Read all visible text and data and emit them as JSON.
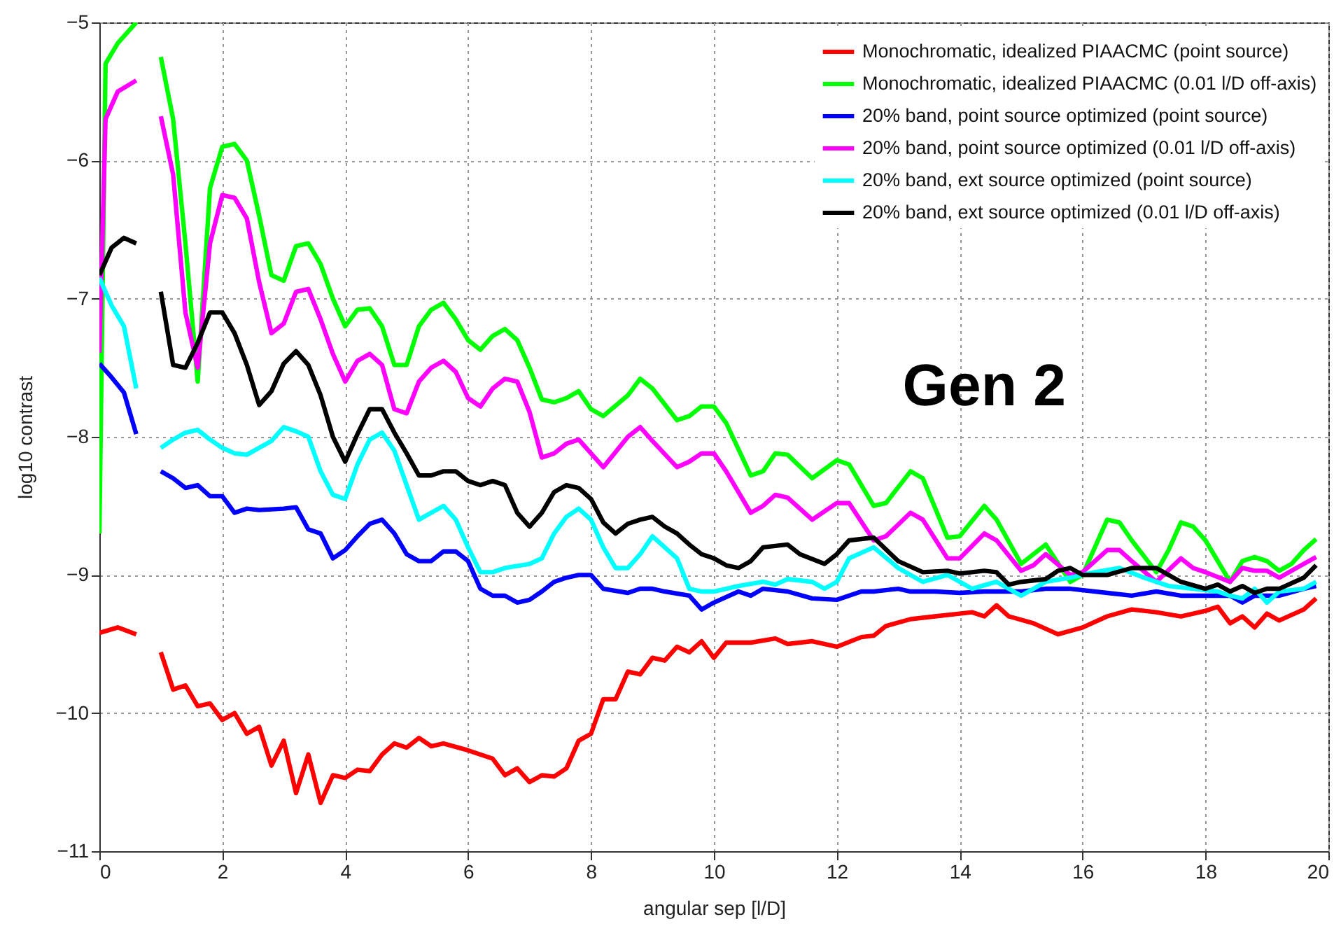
{
  "chart_data": {
    "type": "line",
    "xlabel": "angular sep [l/D]",
    "ylabel": "log10 contrast",
    "xlim": [
      0,
      20
    ],
    "xticks": [
      0,
      2,
      4,
      6,
      8,
      10,
      12,
      14,
      16,
      18,
      20
    ],
    "ylim": [
      -11,
      -5
    ],
    "yticks": [
      -11,
      -10,
      -9,
      -8,
      -7,
      -6,
      -5
    ],
    "grid": true,
    "legend": "top right",
    "line_style": "solid",
    "annotations": [
      "Gen 2"
    ],
    "series": [
      {
        "name": "Monochromatic, idealized PIAACMC (point source)",
        "color": "#ff0000",
        "x": [
          0,
          0.3,
          0.6,
          0.8,
          1.0,
          1.2,
          1.4,
          1.6,
          1.8,
          2.0,
          2.2,
          2.4,
          2.6,
          2.8,
          3.0,
          3.2,
          3.4,
          3.6,
          3.8,
          4.0,
          4.2,
          4.4,
          4.6,
          4.8,
          5.0,
          5.2,
          5.4,
          5.6,
          6.0,
          6.4,
          6.6,
          6.8,
          7.0,
          7.2,
          7.4,
          7.6,
          7.8,
          8.0,
          8.2,
          8.4,
          8.6,
          8.8,
          9.0,
          9.2,
          9.4,
          9.6,
          9.8,
          10.0,
          10.2,
          10.6,
          11.0,
          11.2,
          11.6,
          12.0,
          12.4,
          12.6,
          12.8,
          13.2,
          13.6,
          14.0,
          14.2,
          14.4,
          14.6,
          14.8,
          15.2,
          15.6,
          16.0,
          16.4,
          16.8,
          17.2,
          17.6,
          18.0,
          18.2,
          18.4,
          18.6,
          18.8,
          19.0,
          19.2,
          19.6,
          19.8
        ],
        "values": [
          -9.42,
          -9.38,
          -9.43,
          null,
          -9.56,
          -9.83,
          -9.8,
          -9.95,
          -9.93,
          -10.05,
          -10.0,
          -10.15,
          -10.1,
          -10.38,
          -10.2,
          -10.58,
          -10.3,
          -10.65,
          -10.45,
          -10.47,
          -10.41,
          -10.42,
          -10.3,
          -10.22,
          -10.25,
          -10.18,
          -10.24,
          -10.22,
          -10.27,
          -10.33,
          -10.45,
          -10.4,
          -10.5,
          -10.45,
          -10.46,
          -10.4,
          -10.2,
          -10.15,
          -9.9,
          -9.9,
          -9.7,
          -9.72,
          -9.6,
          -9.62,
          -9.52,
          -9.56,
          -9.48,
          -9.6,
          -9.49,
          -9.49,
          -9.46,
          -9.5,
          -9.48,
          -9.52,
          -9.45,
          -9.44,
          -9.37,
          -9.32,
          -9.3,
          -9.28,
          -9.27,
          -9.3,
          -9.22,
          -9.3,
          -9.35,
          -9.43,
          -9.38,
          -9.3,
          -9.25,
          -9.27,
          -9.3,
          -9.26,
          -9.23,
          -9.35,
          -9.3,
          -9.38,
          -9.28,
          -9.33,
          -9.25,
          -9.17
        ]
      },
      {
        "name": "Monochromatic, idealized PIAACMC (0.01 l/D off-axis)",
        "color": "#00ff00",
        "x": [
          0,
          0.1,
          0.3,
          0.6,
          0.8,
          1.0,
          1.2,
          1.4,
          1.6,
          1.8,
          2.0,
          2.2,
          2.4,
          2.6,
          2.8,
          3.0,
          3.2,
          3.4,
          3.6,
          3.8,
          4.0,
          4.2,
          4.4,
          4.6,
          4.8,
          5.0,
          5.2,
          5.4,
          5.6,
          5.8,
          6.0,
          6.2,
          6.4,
          6.6,
          6.8,
          7.0,
          7.2,
          7.4,
          7.6,
          7.8,
          8.0,
          8.2,
          8.6,
          8.8,
          9.0,
          9.4,
          9.6,
          9.8,
          10.0,
          10.2,
          10.6,
          10.8,
          11.0,
          11.2,
          11.6,
          12.0,
          12.2,
          12.6,
          12.8,
          13.2,
          13.4,
          13.8,
          14.0,
          14.4,
          14.6,
          15.0,
          15.2,
          15.4,
          15.8,
          16.0,
          16.4,
          16.6,
          16.8,
          17.2,
          17.4,
          17.6,
          17.8,
          18.0,
          18.4,
          18.6,
          18.8,
          19.0,
          19.2,
          19.4,
          19.6,
          19.8
        ],
        "values": [
          -8.7,
          -5.3,
          -5.15,
          -5.0,
          null,
          -5.25,
          -5.7,
          -6.6,
          -7.6,
          -6.2,
          -5.9,
          -5.88,
          -6.0,
          -6.4,
          -6.83,
          -6.87,
          -6.62,
          -6.6,
          -6.75,
          -7.0,
          -7.2,
          -7.08,
          -7.07,
          -7.2,
          -7.48,
          -7.48,
          -7.2,
          -7.08,
          -7.03,
          -7.15,
          -7.3,
          -7.37,
          -7.27,
          -7.22,
          -7.3,
          -7.5,
          -7.73,
          -7.75,
          -7.72,
          -7.67,
          -7.8,
          -7.85,
          -7.7,
          -7.58,
          -7.65,
          -7.88,
          -7.85,
          -7.78,
          -7.78,
          -7.9,
          -8.28,
          -8.25,
          -8.12,
          -8.13,
          -8.3,
          -8.17,
          -8.2,
          -8.5,
          -8.48,
          -8.25,
          -8.3,
          -8.73,
          -8.72,
          -8.5,
          -8.6,
          -8.92,
          -8.85,
          -8.78,
          -9.05,
          -9.0,
          -8.6,
          -8.62,
          -8.75,
          -8.98,
          -8.82,
          -8.62,
          -8.65,
          -8.75,
          -9.05,
          -8.9,
          -8.87,
          -8.9,
          -8.97,
          -8.92,
          -8.82,
          -8.74
        ]
      },
      {
        "name": "20% band, point source optimized (point source)",
        "color": "#0000ff",
        "x": [
          0,
          0.2,
          0.4,
          0.6,
          0.8,
          1.0,
          1.2,
          1.4,
          1.6,
          1.8,
          2.0,
          2.2,
          2.4,
          2.6,
          3.0,
          3.2,
          3.4,
          3.6,
          3.8,
          4.0,
          4.2,
          4.4,
          4.6,
          4.8,
          5.0,
          5.2,
          5.4,
          5.6,
          5.8,
          6.0,
          6.2,
          6.4,
          6.6,
          6.8,
          7.0,
          7.2,
          7.4,
          7.6,
          7.8,
          8.0,
          8.2,
          8.6,
          8.8,
          9.0,
          9.2,
          9.6,
          9.8,
          10.0,
          10.4,
          10.6,
          10.8,
          11.2,
          11.6,
          12.0,
          12.4,
          12.6,
          13.0,
          13.2,
          13.6,
          14.0,
          14.4,
          14.8,
          15.0,
          15.4,
          15.8,
          16.4,
          16.8,
          17.2,
          17.6,
          18.0,
          18.4,
          18.6,
          18.8,
          19.2,
          19.6,
          19.8
        ],
        "values": [
          -7.47,
          -7.57,
          -7.68,
          -7.98,
          null,
          -8.25,
          -8.3,
          -8.37,
          -8.35,
          -8.43,
          -8.43,
          -8.55,
          -8.52,
          -8.53,
          -8.52,
          -8.51,
          -8.67,
          -8.7,
          -8.88,
          -8.82,
          -8.72,
          -8.63,
          -8.6,
          -8.7,
          -8.85,
          -8.9,
          -8.9,
          -8.83,
          -8.83,
          -8.9,
          -9.1,
          -9.15,
          -9.15,
          -9.2,
          -9.18,
          -9.12,
          -9.05,
          -9.02,
          -9.0,
          -9.0,
          -9.1,
          -9.13,
          -9.1,
          -9.1,
          -9.12,
          -9.15,
          -9.25,
          -9.2,
          -9.12,
          -9.15,
          -9.1,
          -9.12,
          -9.17,
          -9.18,
          -9.12,
          -9.12,
          -9.1,
          -9.12,
          -9.12,
          -9.13,
          -9.12,
          -9.12,
          -9.12,
          -9.1,
          -9.1,
          -9.13,
          -9.15,
          -9.12,
          -9.15,
          -9.15,
          -9.15,
          -9.2,
          -9.15,
          -9.15,
          -9.1,
          -9.08
        ]
      },
      {
        "name": "20% band, point source optimized (0.01 l/D off-axis)",
        "color": "#ff00ff",
        "x": [
          0,
          0.1,
          0.3,
          0.6,
          0.8,
          1.0,
          1.2,
          1.4,
          1.6,
          1.8,
          2.0,
          2.2,
          2.4,
          2.6,
          2.8,
          3.0,
          3.2,
          3.4,
          3.6,
          3.8,
          4.0,
          4.2,
          4.4,
          4.6,
          4.8,
          5.0,
          5.2,
          5.4,
          5.6,
          5.8,
          6.0,
          6.2,
          6.4,
          6.6,
          6.8,
          7.0,
          7.2,
          7.4,
          7.6,
          7.8,
          8.0,
          8.2,
          8.6,
          8.8,
          9.0,
          9.4,
          9.6,
          9.8,
          10.0,
          10.2,
          10.6,
          10.8,
          11.0,
          11.2,
          11.6,
          12.0,
          12.2,
          12.6,
          12.8,
          13.2,
          13.4,
          13.8,
          14.0,
          14.4,
          14.6,
          15.0,
          15.2,
          15.4,
          15.8,
          16.0,
          16.4,
          16.6,
          16.8,
          17.2,
          17.6,
          17.8,
          18.0,
          18.4,
          18.6,
          18.8,
          19.0,
          19.2,
          19.6,
          19.8
        ],
        "values": [
          -7.39,
          -5.7,
          -5.5,
          -5.42,
          null,
          -5.68,
          -6.1,
          -7.1,
          -7.5,
          -6.6,
          -6.25,
          -6.27,
          -6.42,
          -6.88,
          -7.25,
          -7.18,
          -6.95,
          -6.93,
          -7.15,
          -7.4,
          -7.6,
          -7.45,
          -7.4,
          -7.48,
          -7.8,
          -7.83,
          -7.6,
          -7.5,
          -7.45,
          -7.53,
          -7.72,
          -7.78,
          -7.65,
          -7.58,
          -7.6,
          -7.82,
          -8.15,
          -8.12,
          -8.05,
          -8.02,
          -8.12,
          -8.22,
          -8.0,
          -7.93,
          -8.03,
          -8.22,
          -8.18,
          -8.12,
          -8.12,
          -8.25,
          -8.55,
          -8.5,
          -8.42,
          -8.44,
          -8.6,
          -8.48,
          -8.48,
          -8.75,
          -8.72,
          -8.55,
          -8.6,
          -8.88,
          -8.88,
          -8.7,
          -8.75,
          -8.97,
          -8.93,
          -8.85,
          -9.0,
          -8.98,
          -8.82,
          -8.82,
          -8.9,
          -9.05,
          -8.88,
          -8.95,
          -8.98,
          -9.05,
          -8.95,
          -8.97,
          -8.97,
          -9.02,
          -8.92,
          -8.87
        ]
      },
      {
        "name": "20% band, ext source optimized (point source)",
        "color": "#00ffff",
        "x": [
          0,
          0.2,
          0.4,
          0.6,
          0.8,
          1.0,
          1.2,
          1.4,
          1.6,
          1.8,
          2.0,
          2.2,
          2.4,
          2.6,
          2.8,
          3.0,
          3.2,
          3.4,
          3.6,
          3.8,
          4.0,
          4.2,
          4.4,
          4.6,
          4.8,
          5.0,
          5.2,
          5.4,
          5.6,
          5.8,
          6.0,
          6.2,
          6.4,
          6.6,
          7.0,
          7.2,
          7.4,
          7.6,
          7.8,
          8.0,
          8.2,
          8.4,
          8.6,
          8.8,
          9.0,
          9.2,
          9.4,
          9.6,
          9.8,
          10.0,
          10.4,
          10.8,
          11.0,
          11.2,
          11.6,
          11.8,
          12.0,
          12.2,
          12.6,
          13.0,
          13.4,
          13.8,
          14.2,
          14.6,
          15.0,
          15.4,
          15.8,
          16.2,
          16.6,
          17.0,
          17.4,
          17.8,
          18.2,
          18.4,
          18.6,
          18.8,
          19.0,
          19.2,
          19.6,
          19.8
        ],
        "values": [
          -6.85,
          -7.05,
          -7.2,
          -7.65,
          null,
          -8.08,
          -8.02,
          -7.97,
          -7.95,
          -8.02,
          -8.08,
          -8.12,
          -8.13,
          -8.08,
          -8.03,
          -7.93,
          -7.96,
          -8.0,
          -8.25,
          -8.42,
          -8.45,
          -8.2,
          -8.02,
          -7.97,
          -8.1,
          -8.35,
          -8.6,
          -8.55,
          -8.5,
          -8.6,
          -8.8,
          -8.98,
          -8.98,
          -8.95,
          -8.92,
          -8.88,
          -8.7,
          -8.58,
          -8.52,
          -8.6,
          -8.8,
          -8.95,
          -8.95,
          -8.85,
          -8.72,
          -8.8,
          -8.88,
          -9.1,
          -9.12,
          -9.12,
          -9.08,
          -9.05,
          -9.07,
          -9.03,
          -9.05,
          -9.1,
          -9.05,
          -8.88,
          -8.8,
          -8.95,
          -9.05,
          -9.0,
          -9.1,
          -9.05,
          -9.15,
          -9.05,
          -9.02,
          -8.98,
          -8.95,
          -9.02,
          -9.08,
          -9.1,
          -9.12,
          -9.15,
          -9.17,
          -9.1,
          -9.2,
          -9.12,
          -9.1,
          -9.05
        ]
      },
      {
        "name": "20% band, ext source optimized (0.01 l/D off-axis)",
        "color": "#000000",
        "x": [
          0,
          0.2,
          0.4,
          0.6,
          0.8,
          1.0,
          1.2,
          1.4,
          1.6,
          1.8,
          2.0,
          2.2,
          2.4,
          2.6,
          2.8,
          3.0,
          3.2,
          3.4,
          3.6,
          3.8,
          4.0,
          4.2,
          4.4,
          4.6,
          4.8,
          5.0,
          5.2,
          5.4,
          5.6,
          5.8,
          6.0,
          6.2,
          6.4,
          6.6,
          6.8,
          7.0,
          7.2,
          7.4,
          7.6,
          7.8,
          8.0,
          8.2,
          8.4,
          8.6,
          8.8,
          9.0,
          9.2,
          9.4,
          9.6,
          9.8,
          10.0,
          10.2,
          10.4,
          10.6,
          10.8,
          11.2,
          11.4,
          11.8,
          12.0,
          12.2,
          12.6,
          13.0,
          13.4,
          13.8,
          14.0,
          14.4,
          14.6,
          14.8,
          15.0,
          15.4,
          15.6,
          15.8,
          16.0,
          16.4,
          16.8,
          17.2,
          17.6,
          18.0,
          18.2,
          18.4,
          18.6,
          18.8,
          19.0,
          19.2,
          19.6,
          19.8
        ],
        "values": [
          -6.83,
          -6.63,
          -6.56,
          -6.6,
          null,
          -6.95,
          -7.48,
          -7.5,
          -7.32,
          -7.1,
          -7.1,
          -7.25,
          -7.48,
          -7.77,
          -7.67,
          -7.47,
          -7.38,
          -7.48,
          -7.7,
          -8.0,
          -8.18,
          -7.98,
          -7.8,
          -7.8,
          -7.97,
          -8.12,
          -8.28,
          -8.28,
          -8.25,
          -8.25,
          -8.32,
          -8.35,
          -8.32,
          -8.35,
          -8.55,
          -8.65,
          -8.55,
          -8.4,
          -8.35,
          -8.37,
          -8.45,
          -8.62,
          -8.7,
          -8.63,
          -8.6,
          -8.58,
          -8.65,
          -8.7,
          -8.78,
          -8.85,
          -8.88,
          -8.93,
          -8.95,
          -8.9,
          -8.8,
          -8.78,
          -8.85,
          -8.92,
          -8.85,
          -8.75,
          -8.73,
          -8.9,
          -8.98,
          -8.97,
          -8.99,
          -8.97,
          -8.98,
          -9.07,
          -9.05,
          -9.03,
          -8.97,
          -8.95,
          -9.0,
          -9.0,
          -8.95,
          -8.95,
          -9.05,
          -9.1,
          -9.07,
          -9.12,
          -9.08,
          -9.13,
          -9.1,
          -9.1,
          -9.02,
          -8.93
        ]
      }
    ]
  }
}
